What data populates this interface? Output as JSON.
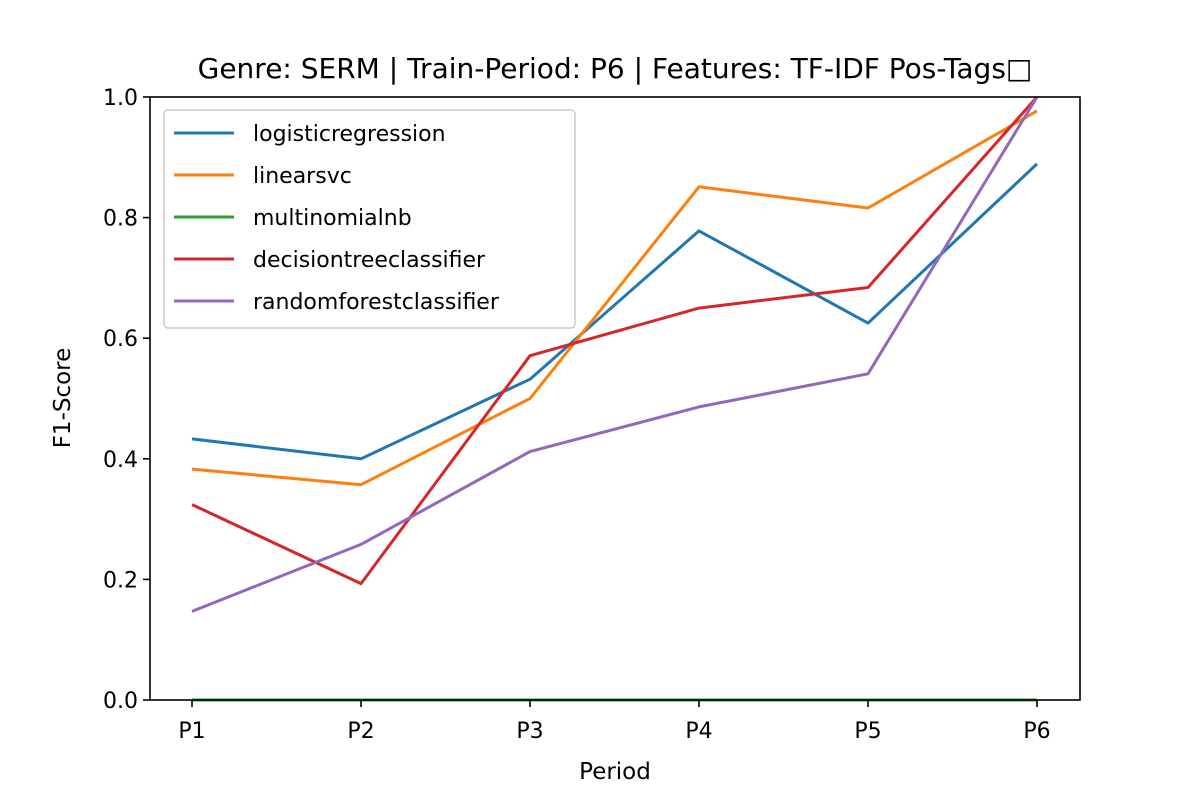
{
  "chart_data": {
    "type": "line",
    "title": "Genre: SERM | Train-Period: P6 | Features: TF-IDF Pos-Tags□",
    "xlabel": "Period",
    "ylabel": "F1-Score",
    "categories": [
      "P1",
      "P2",
      "P3",
      "P4",
      "P5",
      "P6"
    ],
    "ylim": [
      0.0,
      1.0
    ],
    "yticks": [
      "0.0",
      "0.2",
      "0.4",
      "0.6",
      "0.8",
      "1.0"
    ],
    "grid": false,
    "legend_position": "upper-left",
    "series": [
      {
        "name": "logisticregression",
        "color": "#1f77b4",
        "values": [
          0.433,
          0.4,
          0.532,
          0.778,
          0.625,
          0.889
        ]
      },
      {
        "name": "linearsvc",
        "color": "#ff7f0e",
        "values": [
          0.383,
          0.357,
          0.5,
          0.851,
          0.816,
          0.977
        ]
      },
      {
        "name": "multinomialnb",
        "color": "#2ca02c",
        "values": [
          0.0,
          0.0,
          0.0,
          0.0,
          0.0,
          0.0
        ]
      },
      {
        "name": "decisiontreeclassifier",
        "color": "#d62728",
        "values": [
          0.324,
          0.193,
          0.571,
          0.65,
          0.684,
          1.0
        ]
      },
      {
        "name": "randomforestclassifier",
        "color": "#9467bd",
        "values": [
          0.147,
          0.258,
          0.412,
          0.486,
          0.541,
          1.0
        ]
      }
    ]
  }
}
